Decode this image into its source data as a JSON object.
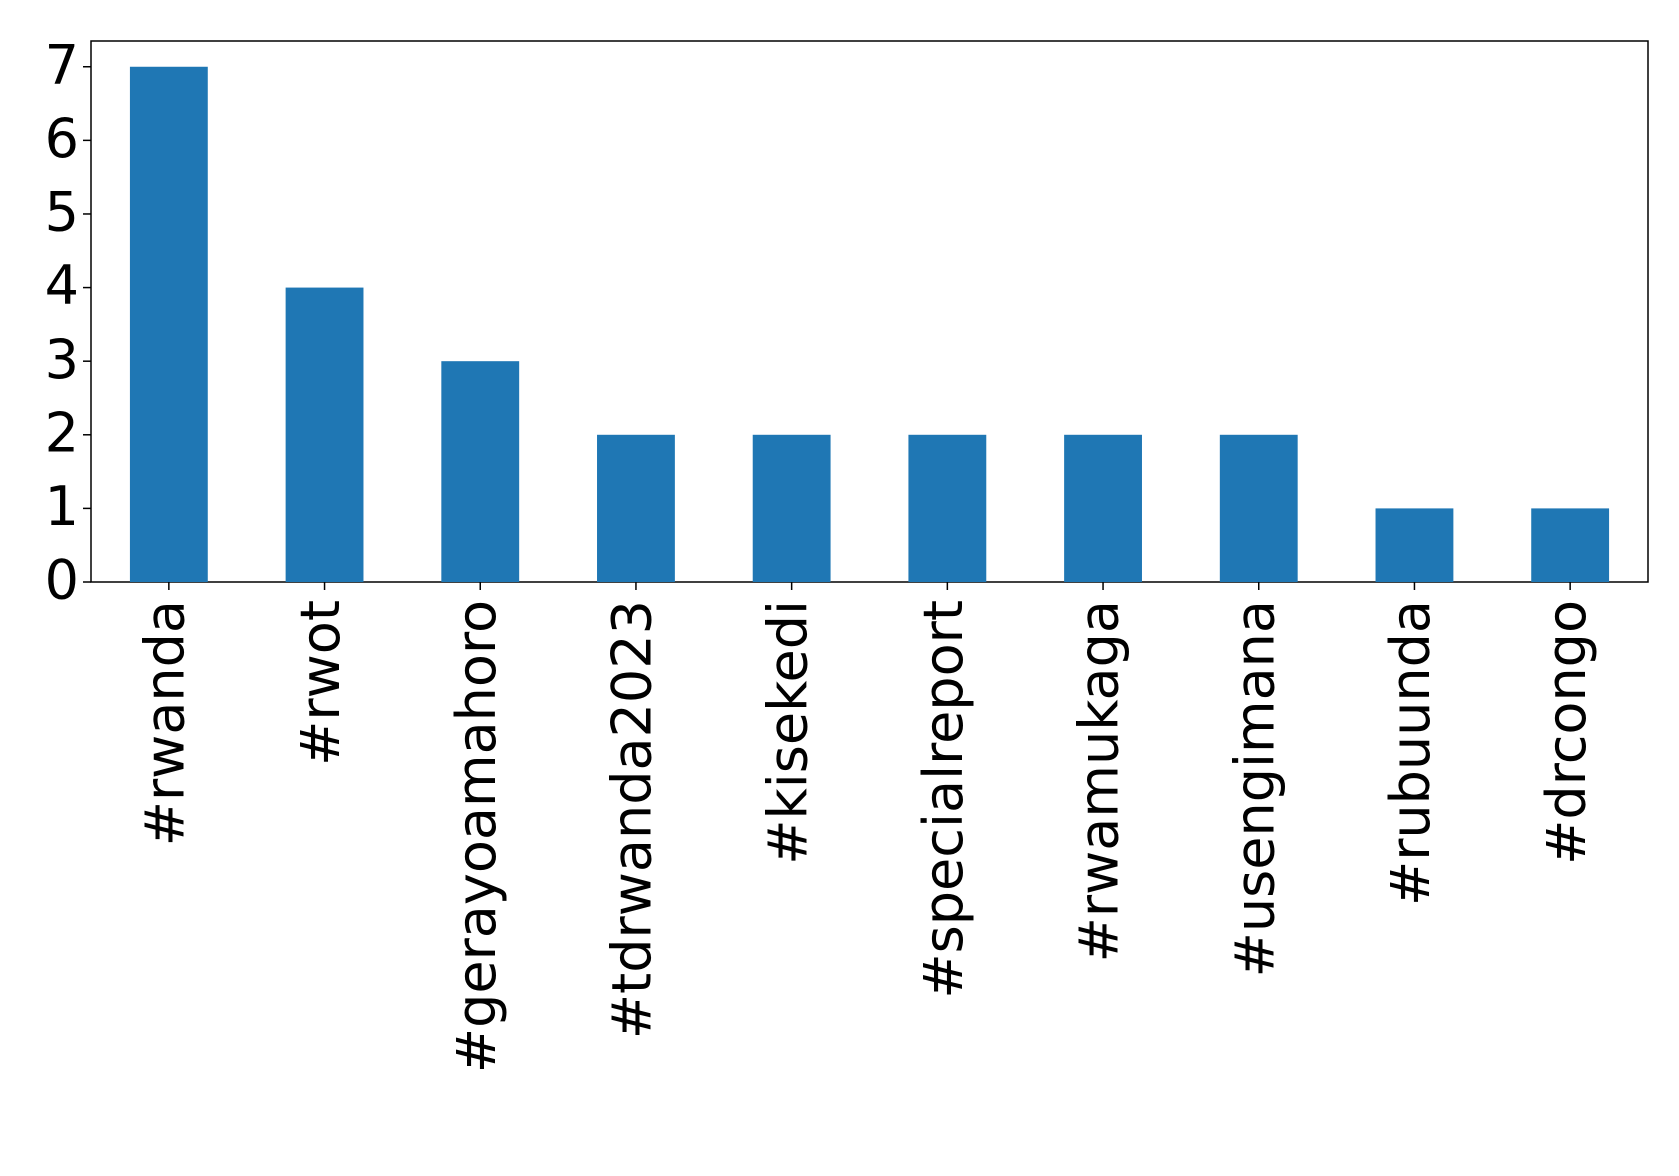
{
  "chart_data": {
    "type": "bar",
    "categories": [
      "#rwanda",
      "#rwot",
      "#gerayoamahoro",
      "#tdrwanda2023",
      "#kisekedi",
      "#specialreport",
      "#rwamukaga",
      "#usengimana",
      "#rubuunda",
      "#drcongo"
    ],
    "values": [
      7,
      4,
      3,
      2,
      2,
      2,
      2,
      2,
      1,
      1
    ],
    "color": "#1f77b4",
    "ylim": [
      0,
      7.35
    ],
    "yticks": [
      0,
      1,
      2,
      3,
      4,
      5,
      6,
      7
    ],
    "grid": false
  }
}
